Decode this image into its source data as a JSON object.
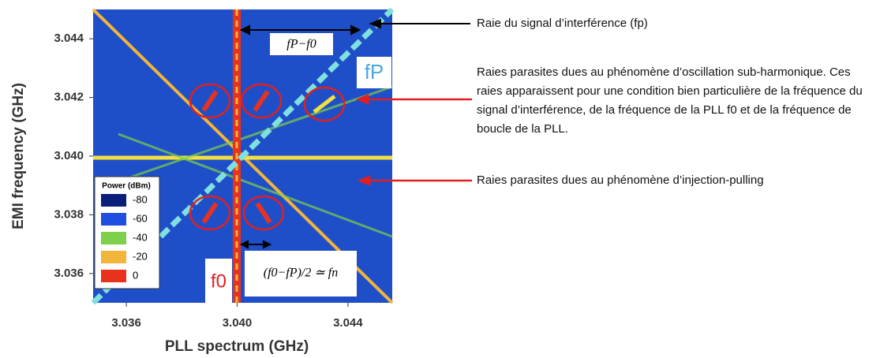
{
  "chart_data": {
    "type": "heatmap",
    "xlabel": "PLL spectrum (GHz)",
    "ylabel": "EMI frequency (GHz)",
    "xlim": [
      3.0348,
      3.0456
    ],
    "xticks": [
      3.036,
      {
        "value": 3.04,
        "label": "3.040"
      },
      3.044
    ],
    "ylim": [
      3.035,
      3.045
    ],
    "yticks": [
      3.036,
      3.038,
      {
        "value": 3.04,
        "label": "3.040"
      },
      3.042,
      3.044
    ],
    "legend": {
      "title": "Power (dBm)",
      "entries": [
        {
          "value": -80,
          "color": "#0a1f7a"
        },
        {
          "value": -60,
          "color": "#1f4fe0"
        },
        {
          "value": -40,
          "color": "#7ed04a"
        },
        {
          "value": -20,
          "color": "#f2b43a"
        },
        {
          "value": 0,
          "color": "#e8321e"
        }
      ]
    },
    "annotations": {
      "delta": "fP−f0",
      "fp": "fP",
      "f0": "f0",
      "fn": "(f0−fP)/2 ≃ fn"
    },
    "notes": [
      "Raie du signal d’interférence (fp)",
      "Raies parasites dues au phénomène d’oscillation sub-harmonique. Ces raies apparaissent pour une condition bien particulière de la fréquence du signal d’interférence, de la fréquence de la PLL f0 et de la fréquence de boucle de la PLL.",
      "Raies parasites dues au phénomène d’injection-pulling"
    ]
  }
}
